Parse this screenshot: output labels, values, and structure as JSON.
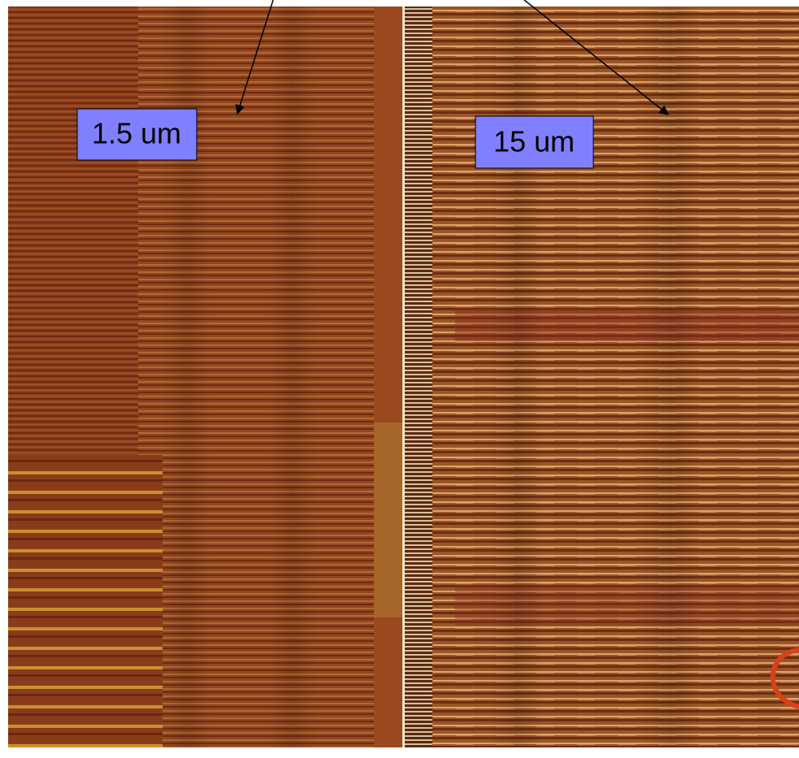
{
  "labels": [
    {
      "text": "1.5 um"
    },
    {
      "text": "15 um"
    }
  ]
}
